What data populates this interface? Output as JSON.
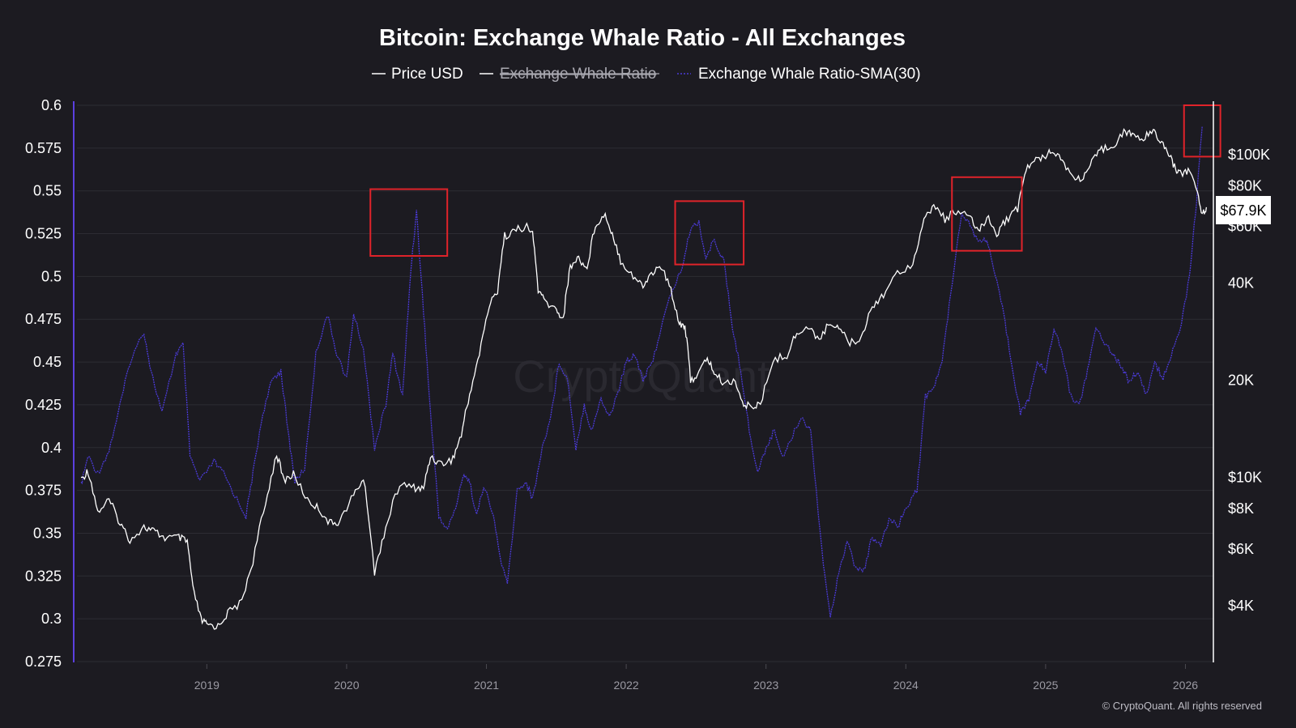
{
  "chart_data": {
    "type": "line",
    "title": "Bitcoin: Exchange Whale Ratio - All Exchanges",
    "legend": [
      {
        "name": "Price USD",
        "color": "#ffffff",
        "enabled": true
      },
      {
        "name": "Exchange Whale Ratio",
        "color": "#ffffff",
        "enabled": false
      },
      {
        "name": "Exchange Whale Ratio-SMA(30)",
        "color": "#4a3ad6",
        "enabled": true
      }
    ],
    "x_range": [
      2018.1,
      2026.2
    ],
    "x_ticks": [
      "2019",
      "2020",
      "2021",
      "2022",
      "2023",
      "2024",
      "2025",
      "2026"
    ],
    "y_left": {
      "range": [
        0.275,
        0.6
      ],
      "ticks": [
        "0.6",
        "0.575",
        "0.55",
        "0.525",
        "0.5",
        "0.475",
        "0.45",
        "0.425",
        "0.4",
        "0.375",
        "0.35",
        "0.325",
        "0.3",
        "0.275"
      ]
    },
    "y_right": {
      "scale": "log",
      "range_usd": [
        2600,
        150000
      ],
      "ticks": [
        {
          "label": "$100K",
          "value": 100000
        },
        {
          "label": "$80K",
          "value": 80000
        },
        {
          "label": "$60K",
          "value": 60000
        },
        {
          "label": "40K",
          "value": 40000
        },
        {
          "label": "20K",
          "value": 20000
        },
        {
          "label": "$10K",
          "value": 10000
        },
        {
          "label": "$8K",
          "value": 8000
        },
        {
          "label": "$6K",
          "value": 6000
        },
        {
          "label": "$4K",
          "value": 4000
        }
      ]
    },
    "current_price_label": "$67.9K",
    "current_price_value": 67900,
    "series": [
      {
        "name": "Price USD",
        "axis": "right",
        "color": "#ffffff",
        "points": [
          [
            2018.1,
            9800
          ],
          [
            2018.15,
            10500
          ],
          [
            2018.22,
            7800
          ],
          [
            2018.3,
            8500
          ],
          [
            2018.38,
            7200
          ],
          [
            2018.45,
            6400
          ],
          [
            2018.55,
            7000
          ],
          [
            2018.62,
            6800
          ],
          [
            2018.7,
            6500
          ],
          [
            2018.8,
            6500
          ],
          [
            2018.86,
            6300
          ],
          [
            2018.9,
            4500
          ],
          [
            2018.96,
            3600
          ],
          [
            2019.0,
            3500
          ],
          [
            2019.08,
            3450
          ],
          [
            2019.15,
            3800
          ],
          [
            2019.25,
            4100
          ],
          [
            2019.33,
            5500
          ],
          [
            2019.42,
            8200
          ],
          [
            2019.5,
            11800
          ],
          [
            2019.55,
            9800
          ],
          [
            2019.62,
            10200
          ],
          [
            2019.72,
            8500
          ],
          [
            2019.8,
            8000
          ],
          [
            2019.88,
            7200
          ],
          [
            2019.95,
            7300
          ],
          [
            2020.05,
            8800
          ],
          [
            2020.12,
            9900
          ],
          [
            2020.2,
            5000
          ],
          [
            2020.28,
            7000
          ],
          [
            2020.38,
            9500
          ],
          [
            2020.48,
            9300
          ],
          [
            2020.55,
            9200
          ],
          [
            2020.6,
            11600
          ],
          [
            2020.68,
            11000
          ],
          [
            2020.76,
            11400
          ],
          [
            2020.82,
            13500
          ],
          [
            2020.88,
            18000
          ],
          [
            2020.95,
            24000
          ],
          [
            2021.02,
            34000
          ],
          [
            2021.08,
            38000
          ],
          [
            2021.13,
            56000
          ],
          [
            2021.2,
            58000
          ],
          [
            2021.28,
            60000
          ],
          [
            2021.33,
            57000
          ],
          [
            2021.37,
            38000
          ],
          [
            2021.42,
            35000
          ],
          [
            2021.5,
            33000
          ],
          [
            2021.55,
            31000
          ],
          [
            2021.6,
            45000
          ],
          [
            2021.66,
            48000
          ],
          [
            2021.72,
            44000
          ],
          [
            2021.78,
            61000
          ],
          [
            2021.85,
            65000
          ],
          [
            2021.9,
            57000
          ],
          [
            2021.96,
            47000
          ],
          [
            2022.05,
            42000
          ],
          [
            2022.12,
            39000
          ],
          [
            2022.18,
            43000
          ],
          [
            2022.25,
            45000
          ],
          [
            2022.32,
            38000
          ],
          [
            2022.38,
            30000
          ],
          [
            2022.42,
            29500
          ],
          [
            2022.46,
            20000
          ],
          [
            2022.52,
            21000
          ],
          [
            2022.58,
            23500
          ],
          [
            2022.63,
            21000
          ],
          [
            2022.7,
            19500
          ],
          [
            2022.78,
            20000
          ],
          [
            2022.84,
            16500
          ],
          [
            2022.9,
            16800
          ],
          [
            2022.96,
            16600
          ],
          [
            2023.05,
            23000
          ],
          [
            2023.15,
            24000
          ],
          [
            2023.22,
            28000
          ],
          [
            2023.3,
            29000
          ],
          [
            2023.38,
            27000
          ],
          [
            2023.46,
            30000
          ],
          [
            2023.52,
            29500
          ],
          [
            2023.6,
            26000
          ],
          [
            2023.68,
            27000
          ],
          [
            2023.76,
            34000
          ],
          [
            2023.84,
            37000
          ],
          [
            2023.94,
            43000
          ],
          [
            2024.05,
            46000
          ],
          [
            2024.13,
            62000
          ],
          [
            2024.2,
            70000
          ],
          [
            2024.28,
            63000
          ],
          [
            2024.36,
            67000
          ],
          [
            2024.45,
            64000
          ],
          [
            2024.52,
            58000
          ],
          [
            2024.58,
            64000
          ],
          [
            2024.65,
            57000
          ],
          [
            2024.72,
            63000
          ],
          [
            2024.8,
            68000
          ],
          [
            2024.86,
            90000
          ],
          [
            2024.93,
            96000
          ],
          [
            2025.0,
            100000
          ],
          [
            2025.05,
            104000
          ],
          [
            2025.12,
            96000
          ],
          [
            2025.2,
            84000
          ],
          [
            2025.27,
            85000
          ],
          [
            2025.33,
            94000
          ],
          [
            2025.4,
            104000
          ],
          [
            2025.48,
            107000
          ],
          [
            2025.56,
            117000
          ],
          [
            2025.62,
            116000
          ],
          [
            2025.7,
            111000
          ],
          [
            2025.77,
            121000
          ],
          [
            2025.82,
            110000
          ],
          [
            2025.88,
            101000
          ],
          [
            2025.93,
            90000
          ],
          [
            2025.97,
            88000
          ],
          [
            2026.03,
            89000
          ],
          [
            2026.08,
            78000
          ],
          [
            2026.12,
            66000
          ],
          [
            2026.15,
            67900
          ]
        ]
      },
      {
        "name": "Exchange Whale Ratio-SMA(30)",
        "axis": "left",
        "color": "#4a3ad6",
        "points": [
          [
            2018.1,
            0.378
          ],
          [
            2018.15,
            0.395
          ],
          [
            2018.22,
            0.385
          ],
          [
            2018.3,
            0.398
          ],
          [
            2018.38,
            0.425
          ],
          [
            2018.45,
            0.45
          ],
          [
            2018.55,
            0.468
          ],
          [
            2018.6,
            0.445
          ],
          [
            2018.68,
            0.42
          ],
          [
            2018.78,
            0.455
          ],
          [
            2018.83,
            0.46
          ],
          [
            2018.88,
            0.395
          ],
          [
            2018.95,
            0.38
          ],
          [
            2019.05,
            0.392
          ],
          [
            2019.12,
            0.385
          ],
          [
            2019.2,
            0.372
          ],
          [
            2019.28,
            0.36
          ],
          [
            2019.33,
            0.385
          ],
          [
            2019.4,
            0.42
          ],
          [
            2019.47,
            0.44
          ],
          [
            2019.53,
            0.445
          ],
          [
            2019.58,
            0.41
          ],
          [
            2019.63,
            0.38
          ],
          [
            2019.7,
            0.388
          ],
          [
            2019.78,
            0.455
          ],
          [
            2019.86,
            0.478
          ],
          [
            2019.93,
            0.455
          ],
          [
            2020.0,
            0.44
          ],
          [
            2020.05,
            0.478
          ],
          [
            2020.12,
            0.458
          ],
          [
            2020.2,
            0.4
          ],
          [
            2020.28,
            0.425
          ],
          [
            2020.33,
            0.455
          ],
          [
            2020.4,
            0.43
          ],
          [
            2020.46,
            0.505
          ],
          [
            2020.5,
            0.538
          ],
          [
            2020.55,
            0.48
          ],
          [
            2020.6,
            0.42
          ],
          [
            2020.66,
            0.36
          ],
          [
            2020.72,
            0.352
          ],
          [
            2020.78,
            0.365
          ],
          [
            2020.84,
            0.385
          ],
          [
            2020.88,
            0.38
          ],
          [
            2020.93,
            0.36
          ],
          [
            2020.98,
            0.378
          ],
          [
            2021.05,
            0.36
          ],
          [
            2021.1,
            0.335
          ],
          [
            2021.15,
            0.32
          ],
          [
            2021.22,
            0.375
          ],
          [
            2021.28,
            0.38
          ],
          [
            2021.33,
            0.37
          ],
          [
            2021.4,
            0.4
          ],
          [
            2021.46,
            0.418
          ],
          [
            2021.52,
            0.45
          ],
          [
            2021.58,
            0.44
          ],
          [
            2021.64,
            0.4
          ],
          [
            2021.7,
            0.425
          ],
          [
            2021.75,
            0.41
          ],
          [
            2021.82,
            0.428
          ],
          [
            2021.88,
            0.418
          ],
          [
            2021.94,
            0.432
          ],
          [
            2022.0,
            0.45
          ],
          [
            2022.06,
            0.455
          ],
          [
            2022.12,
            0.44
          ],
          [
            2022.18,
            0.448
          ],
          [
            2022.25,
            0.47
          ],
          [
            2022.32,
            0.49
          ],
          [
            2022.4,
            0.505
          ],
          [
            2022.46,
            0.528
          ],
          [
            2022.52,
            0.532
          ],
          [
            2022.57,
            0.51
          ],
          [
            2022.63,
            0.522
          ],
          [
            2022.7,
            0.508
          ],
          [
            2022.76,
            0.47
          ],
          [
            2022.82,
            0.445
          ],
          [
            2022.88,
            0.41
          ],
          [
            2022.94,
            0.385
          ],
          [
            2023.0,
            0.4
          ],
          [
            2023.06,
            0.41
          ],
          [
            2023.12,
            0.395
          ],
          [
            2023.18,
            0.405
          ],
          [
            2023.25,
            0.418
          ],
          [
            2023.32,
            0.41
          ],
          [
            2023.4,
            0.34
          ],
          [
            2023.46,
            0.3
          ],
          [
            2023.52,
            0.328
          ],
          [
            2023.58,
            0.345
          ],
          [
            2023.64,
            0.33
          ],
          [
            2023.7,
            0.328
          ],
          [
            2023.76,
            0.348
          ],
          [
            2023.82,
            0.342
          ],
          [
            2023.88,
            0.358
          ],
          [
            2023.95,
            0.355
          ],
          [
            2024.0,
            0.365
          ],
          [
            2024.08,
            0.375
          ],
          [
            2024.14,
            0.43
          ],
          [
            2024.2,
            0.435
          ],
          [
            2024.26,
            0.45
          ],
          [
            2024.32,
            0.49
          ],
          [
            2024.4,
            0.538
          ],
          [
            2024.46,
            0.53
          ],
          [
            2024.52,
            0.52
          ],
          [
            2024.58,
            0.522
          ],
          [
            2024.64,
            0.5
          ],
          [
            2024.7,
            0.478
          ],
          [
            2024.76,
            0.448
          ],
          [
            2024.82,
            0.42
          ],
          [
            2024.88,
            0.428
          ],
          [
            2024.94,
            0.45
          ],
          [
            2025.0,
            0.445
          ],
          [
            2025.06,
            0.47
          ],
          [
            2025.12,
            0.455
          ],
          [
            2025.18,
            0.43
          ],
          [
            2025.24,
            0.425
          ],
          [
            2025.3,
            0.445
          ],
          [
            2025.36,
            0.47
          ],
          [
            2025.42,
            0.462
          ],
          [
            2025.48,
            0.455
          ],
          [
            2025.54,
            0.448
          ],
          [
            2025.6,
            0.438
          ],
          [
            2025.66,
            0.445
          ],
          [
            2025.72,
            0.43
          ],
          [
            2025.78,
            0.45
          ],
          [
            2025.84,
            0.44
          ],
          [
            2025.9,
            0.455
          ],
          [
            2025.96,
            0.468
          ],
          [
            2026.03,
            0.5
          ],
          [
            2026.08,
            0.545
          ],
          [
            2026.12,
            0.588
          ]
        ]
      }
    ],
    "highlight_boxes": [
      {
        "x_start": 2020.17,
        "x_end": 2020.72,
        "y_top": 0.551,
        "y_bottom": 0.512
      },
      {
        "x_start": 2022.35,
        "x_end": 2022.84,
        "y_top": 0.544,
        "y_bottom": 0.507
      },
      {
        "x_start": 2024.33,
        "x_end": 2024.83,
        "y_top": 0.558,
        "y_bottom": 0.515
      },
      {
        "x_start": 2025.99,
        "x_end": 2026.25,
        "y_top": 0.6,
        "y_bottom": 0.57
      }
    ],
    "watermark": "CryptoQuant",
    "copyright": "© CryptoQuant. All rights reserved"
  }
}
